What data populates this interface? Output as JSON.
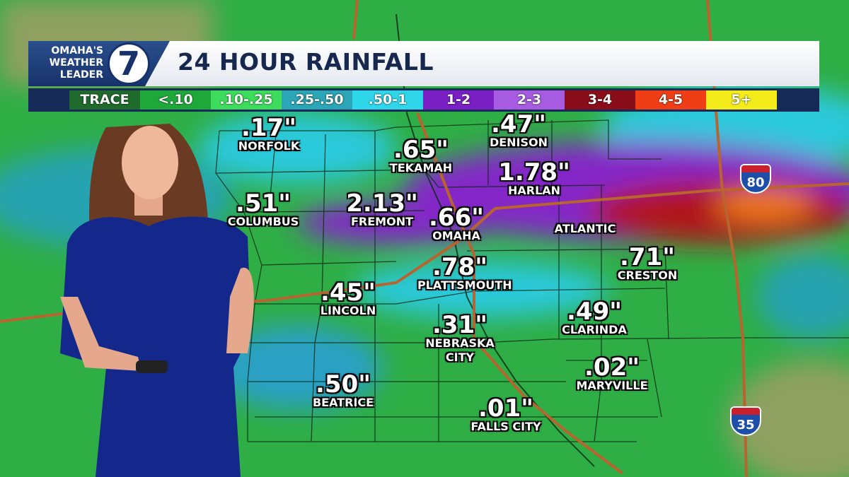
{
  "logo": {
    "lines": [
      "OMAHA'S",
      "WEATHER",
      "LEADER"
    ],
    "channel": "7"
  },
  "title": "24 HOUR RAINFALL",
  "legend": [
    {
      "label": "TRACE",
      "color": "#1f6b2c"
    },
    {
      "label": "<.10",
      "color": "#1fa83a"
    },
    {
      "label": ".10-.25",
      "color": "#3ddc5c"
    },
    {
      "label": ".25-.50",
      "color": "#2aa6b6"
    },
    {
      "label": ".50-1",
      "color": "#2fd6ea"
    },
    {
      "label": "1-2",
      "color": "#7a1fc4"
    },
    {
      "label": "2-3",
      "color": "#a65be0"
    },
    {
      "label": "3-4",
      "color": "#8a0d1a"
    },
    {
      "label": "4-5",
      "color": "#ef3d16"
    },
    {
      "label": "5+",
      "color": "#f3ec1a"
    }
  ],
  "cities": [
    {
      "amount": ".17\"",
      "name": "NORFOLK"
    },
    {
      "amount": ".47\"",
      "name": "DENISON"
    },
    {
      "amount": ".65\"",
      "name": "TEKAMAH"
    },
    {
      "amount": "1.78\"",
      "name": "HARLAN"
    },
    {
      "amount": ".51\"",
      "name": "COLUMBUS"
    },
    {
      "amount": "2.13\"",
      "name": "FREMONT"
    },
    {
      "amount": ".66\"",
      "name": "OMAHA"
    },
    {
      "name": "ATLANTIC"
    },
    {
      "amount": ".71\"",
      "name": "CRESTON"
    },
    {
      "amount": ".78\"",
      "name": "PLATTSMOUTH"
    },
    {
      "amount": ".45\"",
      "name": "LINCOLN"
    },
    {
      "amount": ".49\"",
      "name": "CLARINDA"
    },
    {
      "amount": ".31\"",
      "name": "NEBRASKA CITY"
    },
    {
      "amount": ".02\"",
      "name": "MARYVILLE"
    },
    {
      "amount": ".50\"",
      "name": "BEATRICE"
    },
    {
      "amount": ".01\"",
      "name": "FALLS CITY"
    }
  ],
  "shields": [
    "80",
    "35"
  ]
}
